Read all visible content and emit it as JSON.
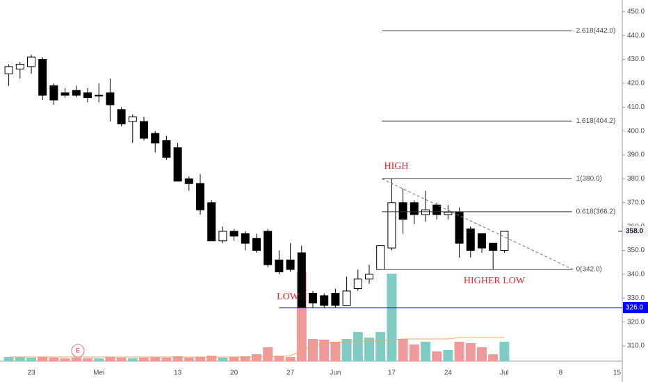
{
  "chart_data": {
    "type": "candlestick",
    "categories": [
      null,
      null,
      "23",
      null,
      null,
      null,
      null,
      null,
      "Mei",
      null,
      null,
      null,
      null,
      null,
      null,
      "13",
      null,
      null,
      null,
      null,
      "20",
      null,
      null,
      null,
      null,
      "27",
      null,
      null,
      null,
      "Jun",
      null,
      null,
      null,
      null,
      "17",
      null,
      null,
      null,
      null,
      "24",
      null,
      null,
      null,
      null,
      "Jul",
      null,
      null,
      null,
      null,
      "8",
      null,
      null,
      null,
      null,
      "15"
    ],
    "open": [
      424,
      426,
      427,
      430,
      419,
      416,
      417,
      416,
      415,
      416,
      409,
      404,
      404,
      399,
      396,
      393,
      380,
      378,
      370,
      354,
      358,
      357,
      355,
      358,
      346,
      346,
      349,
      332,
      331,
      332,
      327,
      334,
      338,
      342,
      351,
      370,
      370,
      365,
      369,
      365,
      366,
      359,
      357,
      353,
      350,
      null,
      null,
      null,
      null,
      null,
      null,
      null,
      null,
      null,
      null
    ],
    "high": [
      428,
      429,
      432,
      431,
      420,
      418,
      419,
      418,
      420,
      422,
      410,
      407,
      406,
      400,
      398,
      395,
      381,
      382,
      371,
      360,
      359,
      358,
      357,
      359,
      350,
      353,
      352,
      333,
      332,
      334,
      339,
      342,
      344,
      352,
      380,
      376,
      371,
      375,
      370,
      369,
      368,
      360,
      357,
      353,
      358,
      null,
      null,
      null,
      null,
      null,
      null,
      null,
      null,
      null,
      null
    ],
    "low": [
      419,
      422,
      424,
      413,
      411,
      414,
      414,
      412,
      412,
      404,
      402,
      395,
      396,
      391,
      388,
      379,
      375,
      365,
      354,
      353,
      354,
      350,
      349,
      343,
      340,
      341,
      326,
      326,
      326,
      326,
      327,
      333,
      336,
      342,
      350,
      357,
      361,
      362,
      363,
      363,
      347,
      347,
      349,
      342,
      349,
      null,
      null,
      null,
      null,
      null,
      null,
      null,
      null,
      null,
      null
    ],
    "close": [
      427,
      428,
      431,
      415,
      413,
      415,
      415,
      414,
      415,
      411,
      403,
      406,
      397,
      395,
      389,
      379,
      378,
      367,
      354,
      358,
      356,
      353,
      350,
      344,
      341,
      342,
      326,
      328,
      327,
      327,
      333,
      338,
      340,
      352,
      370,
      363,
      365,
      367,
      365,
      366,
      353,
      350,
      351,
      350,
      358,
      null,
      null,
      null,
      null,
      null,
      null,
      null,
      null,
      null,
      null
    ],
    "volume": [
      6,
      6,
      5,
      6,
      5,
      4,
      5,
      4,
      4,
      6,
      5,
      4,
      5,
      6,
      5,
      7,
      5,
      6,
      8,
      5,
      6,
      7,
      10,
      20,
      8,
      6,
      128,
      32,
      31,
      28,
      32,
      42,
      34,
      42,
      126,
      32,
      24,
      28,
      14,
      16,
      28,
      26,
      20,
      10,
      28,
      null,
      null,
      null,
      null,
      null,
      null,
      null,
      null,
      null,
      null
    ],
    "volume_ma": [
      6,
      6,
      6,
      6,
      6,
      6,
      6,
      6,
      6,
      6,
      6,
      6,
      6,
      6,
      6,
      6,
      6,
      6,
      6,
      6,
      6,
      6,
      6,
      6,
      7,
      8,
      15,
      22,
      26,
      27,
      28,
      28,
      29,
      29,
      31,
      32,
      32,
      32,
      32,
      32,
      34,
      34,
      34,
      34,
      34,
      null,
      null,
      null,
      null,
      null,
      null,
      null,
      null,
      null,
      null
    ],
    "ylim": [
      303.6,
      454.9
    ],
    "yticks": [
      {
        "value": 310,
        "label": "310.0"
      },
      {
        "value": 320,
        "label": "320.0"
      },
      {
        "value": 330,
        "label": "330.0"
      },
      {
        "value": 340,
        "label": "340.0"
      },
      {
        "value": 350,
        "label": "350.0"
      },
      {
        "value": 360,
        "label": "360.0"
      },
      {
        "value": 370,
        "label": "370.0"
      },
      {
        "value": 380,
        "label": "380.0"
      },
      {
        "value": 390,
        "label": "390.0"
      },
      {
        "value": 400,
        "label": "400.0"
      },
      {
        "value": 410,
        "label": "410.0"
      },
      {
        "value": 420,
        "label": "420.0"
      },
      {
        "value": 430,
        "label": "430.0"
      },
      {
        "value": 440,
        "label": "440.0"
      },
      {
        "value": 450,
        "label": "450.0"
      }
    ],
    "y2lim": [
      0,
      520
    ],
    "colors": {
      "up_volume": "#80cbc4",
      "down_volume": "#ef9a9a",
      "volume_ma": "#f7a35c",
      "annotation": "#e0282e"
    },
    "fib_levels": [
      {
        "value": 442,
        "label": "2.618(442.0)"
      },
      {
        "value": 404.2,
        "label": "1.618(404.2)"
      },
      {
        "value": 380,
        "label": "1(380.0)"
      },
      {
        "value": 366.2,
        "label": "0.618(366.2)"
      },
      {
        "value": 342,
        "label": "0(342.0)"
      }
    ],
    "trendline": [
      380,
      342
    ],
    "horizontal_line": {
      "value": 326,
      "label": "326.0",
      "color": "#0000ff"
    },
    "last_price": {
      "value": 358,
      "label": "358.0"
    },
    "annotations": {
      "high": "HIGH",
      "low": "LOW",
      "higher_low": "HIGHER LOW",
      "earnings": "E"
    }
  }
}
